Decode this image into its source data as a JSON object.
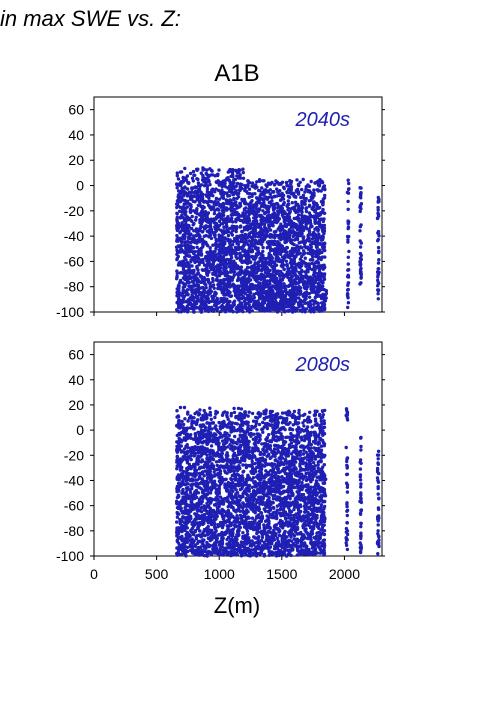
{
  "figure": {
    "header_text": "in max SWE vs. Z:",
    "scenario_title": "A1B",
    "xlabel": "Z(m)"
  },
  "colors": {
    "points": "#1f1fb4",
    "label_text": "#2121b0",
    "axis": "#000000"
  },
  "chart_data": [
    {
      "type": "scatter",
      "panel_label": "2040s",
      "xlim": [
        0,
        2300
      ],
      "ylim": [
        -100,
        70
      ],
      "x_ticks": [
        0,
        500,
        1000,
        1500,
        2000
      ],
      "y_ticks": [
        -100,
        -80,
        -60,
        -40,
        -20,
        0,
        20,
        40,
        60
      ],
      "x_tick_labels_shown": false,
      "point_clusters": [
        {
          "x_range": [
            660,
            1200
          ],
          "y_range": [
            -100,
            14
          ],
          "note": "dense"
        },
        {
          "x_range": [
            1200,
            1850
          ],
          "y_range": [
            -100,
            5
          ],
          "note": "dense"
        },
        {
          "x": 2030,
          "y_range": [
            -100,
            8
          ]
        },
        {
          "x": 2130,
          "y_range": [
            -80,
            2
          ]
        },
        {
          "x": 2270,
          "y_range": [
            -90,
            -3
          ]
        }
      ]
    },
    {
      "type": "scatter",
      "panel_label": "2080s",
      "xlim": [
        0,
        2300
      ],
      "ylim": [
        -100,
        70
      ],
      "x_ticks": [
        0,
        500,
        1000,
        1500,
        2000
      ],
      "y_ticks": [
        -100,
        -80,
        -60,
        -40,
        -20,
        0,
        20,
        40,
        60
      ],
      "x_tick_labels_shown": true,
      "point_clusters": [
        {
          "x_range": [
            660,
            1200
          ],
          "y_range": [
            -100,
            18
          ],
          "note": "dense"
        },
        {
          "x_range": [
            1200,
            1850
          ],
          "y_range": [
            -100,
            16
          ],
          "note": "dense"
        },
        {
          "x": 2020,
          "y_range": [
            -100,
            21
          ]
        },
        {
          "x": 2130,
          "y_range": [
            -100,
            -4
          ]
        },
        {
          "x": 2270,
          "y_range": [
            -100,
            -14
          ]
        }
      ]
    }
  ]
}
